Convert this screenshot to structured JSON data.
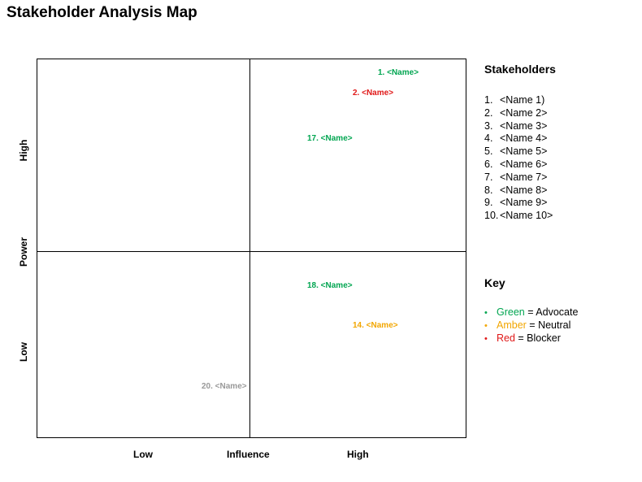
{
  "title": "Stakeholder Analysis Map",
  "colors": {
    "green": "#00a550",
    "amber": "#f2a600",
    "red": "#e01818",
    "grey": "#999999"
  },
  "map": {
    "x_axis": {
      "low": "Low",
      "mid": "Influence",
      "high": "High"
    },
    "y_axis": {
      "high": "High",
      "mid": "Power",
      "low": "Low"
    },
    "markers": [
      {
        "label": "1. <Name>",
        "color": "#00a550"
      },
      {
        "label": "2. <Name>",
        "color": "#e01818"
      },
      {
        "label": "17. <Name>",
        "color": "#00a550"
      },
      {
        "label": "18. <Name>",
        "color": "#00a550"
      },
      {
        "label": "14. <Name>",
        "color": "#f2a600"
      },
      {
        "label": "20. <Name>",
        "color": "#999999"
      }
    ]
  },
  "stakeholders": {
    "heading": "Stakeholders",
    "items": [
      {
        "num": "1.",
        "name": "<Name 1)"
      },
      {
        "num": "2.",
        "name": "<Name 2>"
      },
      {
        "num": "3.",
        "name": "<Name 3>"
      },
      {
        "num": "4.",
        "name": "<Name 4>"
      },
      {
        "num": "5.",
        "name": "<Name 5>"
      },
      {
        "num": "6.",
        "name": "<Name 6>"
      },
      {
        "num": "7.",
        "name": "<Name 7>"
      },
      {
        "num": "8.",
        "name": "<Name 8>"
      },
      {
        "num": "9.",
        "name": "<Name 9>"
      },
      {
        "num": "10.",
        "name": "<Name 10>"
      }
    ]
  },
  "key": {
    "heading": "Key",
    "items": [
      {
        "bullet": "•",
        "word": "Green",
        "rest": " = Advocate",
        "color": "#00a550"
      },
      {
        "bullet": "•",
        "word": "Amber",
        "rest": " = Neutral",
        "color": "#f2a600"
      },
      {
        "bullet": "•",
        "word": "Red",
        "rest": " = Blocker",
        "color": "#e01818"
      }
    ]
  }
}
